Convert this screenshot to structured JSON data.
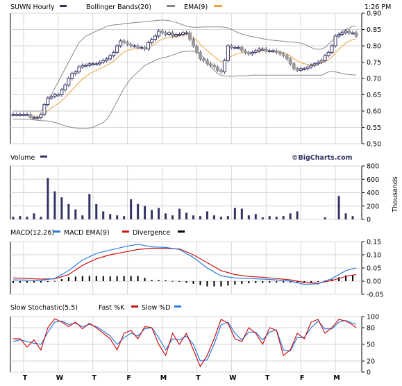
{
  "colors": {
    "sma": "#e8a33c",
    "candle": "#333366",
    "band": "#888888",
    "macd": "#2a7de1",
    "signal": "#cc1111",
    "hist": "#000000",
    "vol": "#333366"
  },
  "time": "1:26 PM",
  "x_ticks": [
    "T",
    "W",
    "T",
    "F",
    "M",
    "T",
    "W",
    "T",
    "F",
    "M"
  ],
  "watermark": "©BigCharts.com",
  "panels": {
    "price": {
      "title": "SUWN Hourly",
      "legend": [
        {
          "label": "Bollinger Bands(20)",
          "color": "#888888"
        },
        {
          "label": "EMA(9)",
          "color": "#e8a33c"
        }
      ],
      "y_ticks": [
        "0.90",
        "0.85",
        "0.80",
        "0.75",
        "0.70",
        "0.65",
        "0.60",
        "0.55",
        "0.50"
      ]
    },
    "volume": {
      "title": "Volume",
      "y_ticks": [
        "800",
        "600",
        "400",
        "200",
        "0"
      ],
      "y_unit": "Thousands"
    },
    "macd": {
      "title": "MACD(12,26)",
      "legend": [
        {
          "label": "MACD EMA(9)",
          "color": "#2a7de1"
        },
        {
          "label": "Divergence",
          "color": "#cc1111"
        }
      ],
      "y_ticks": [
        "0.15",
        "0.10",
        "0.05",
        "0.00",
        "-0.05"
      ]
    },
    "stoch": {
      "title": "Slow Stochastic(5,5)",
      "legend": [
        {
          "label": "Fast %K",
          "color": "#cc1111"
        },
        {
          "label": "Slow %D",
          "color": "#2a7de1"
        }
      ],
      "y_ticks": [
        "100",
        "80",
        "50",
        "20",
        "0"
      ]
    }
  },
  "chart_data": [
    {
      "type": "line",
      "panel": "price",
      "ylim": [
        0.5,
        0.9
      ],
      "x": [
        0,
        1,
        2,
        3,
        4,
        5,
        6,
        7,
        8,
        9,
        10,
        11,
        12,
        13,
        14,
        15,
        16,
        17,
        18,
        19,
        20,
        21,
        22,
        23,
        24,
        25,
        26,
        27,
        28,
        29,
        30,
        31,
        32,
        33,
        34,
        35,
        36,
        37,
        38,
        39,
        40,
        41,
        42,
        43,
        44,
        45,
        46,
        47,
        48,
        49,
        50,
        51,
        52,
        53,
        54,
        55,
        56,
        57,
        58,
        59,
        60,
        61,
        62,
        63,
        64,
        65,
        66,
        67,
        68,
        69,
        70,
        71,
        72,
        73,
        74,
        75,
        76,
        77,
        78,
        79,
        80,
        81,
        82,
        83,
        84,
        85,
        86,
        87,
        88,
        89,
        90,
        91,
        92,
        93,
        94,
        95,
        96,
        97,
        98,
        99
      ],
      "close": [
        0.59,
        0.59,
        0.59,
        0.59,
        0.59,
        0.58,
        0.58,
        0.58,
        0.59,
        0.62,
        0.64,
        0.645,
        0.65,
        0.65,
        0.665,
        0.68,
        0.7,
        0.715,
        0.72,
        0.735,
        0.74,
        0.74,
        0.745,
        0.745,
        0.745,
        0.75,
        0.755,
        0.76,
        0.77,
        0.78,
        0.8,
        0.815,
        0.81,
        0.805,
        0.8,
        0.8,
        0.795,
        0.795,
        0.79,
        0.81,
        0.82,
        0.83,
        0.845,
        0.84,
        0.835,
        0.84,
        0.83,
        0.835,
        0.835,
        0.84,
        0.84,
        0.82,
        0.8,
        0.78,
        0.76,
        0.755,
        0.745,
        0.74,
        0.735,
        0.725,
        0.72,
        0.755,
        0.8,
        0.795,
        0.795,
        0.795,
        0.785,
        0.78,
        0.775,
        0.78,
        0.785,
        0.79,
        0.79,
        0.785,
        0.785,
        0.785,
        0.78,
        0.775,
        0.77,
        0.76,
        0.745,
        0.73,
        0.725,
        0.73,
        0.73,
        0.735,
        0.74,
        0.745,
        0.75,
        0.755,
        0.77,
        0.78,
        0.8,
        0.83,
        0.835,
        0.84,
        0.845,
        0.84,
        0.84,
        0.83
      ],
      "ema9": [
        0.588,
        0.588,
        0.588,
        0.588,
        0.588,
        0.586,
        0.585,
        0.584,
        0.585,
        0.592,
        0.601,
        0.609,
        0.617,
        0.623,
        0.632,
        0.641,
        0.653,
        0.665,
        0.676,
        0.688,
        0.698,
        0.706,
        0.714,
        0.72,
        0.725,
        0.73,
        0.735,
        0.74,
        0.746,
        0.753,
        0.763,
        0.773,
        0.781,
        0.786,
        0.789,
        0.791,
        0.792,
        0.793,
        0.792,
        0.796,
        0.801,
        0.807,
        0.815,
        0.82,
        0.823,
        0.826,
        0.827,
        0.828,
        0.83,
        0.832,
        0.834,
        0.831,
        0.825,
        0.816,
        0.805,
        0.795,
        0.785,
        0.776,
        0.768,
        0.759,
        0.751,
        0.752,
        0.761,
        0.768,
        0.773,
        0.777,
        0.779,
        0.779,
        0.778,
        0.778,
        0.78,
        0.782,
        0.784,
        0.784,
        0.784,
        0.784,
        0.783,
        0.782,
        0.779,
        0.775,
        0.769,
        0.761,
        0.754,
        0.749,
        0.745,
        0.743,
        0.743,
        0.743,
        0.745,
        0.747,
        0.752,
        0.757,
        0.766,
        0.778,
        0.789,
        0.799,
        0.808,
        0.814,
        0.819,
        0.821
      ],
      "bb_upper": [
        0.6,
        0.6,
        0.6,
        0.6,
        0.6,
        0.6,
        0.6,
        0.6,
        0.6,
        0.61,
        0.63,
        0.65,
        0.67,
        0.69,
        0.71,
        0.73,
        0.75,
        0.77,
        0.79,
        0.81,
        0.82,
        0.83,
        0.835,
        0.84,
        0.845,
        0.85,
        0.855,
        0.86,
        0.862,
        0.864,
        0.865,
        0.866,
        0.868,
        0.869,
        0.87,
        0.871,
        0.872,
        0.873,
        0.874,
        0.875,
        0.876,
        0.877,
        0.878,
        0.879,
        0.878,
        0.877,
        0.875,
        0.872,
        0.868,
        0.864,
        0.86,
        0.858,
        0.857,
        0.857,
        0.857,
        0.858,
        0.858,
        0.858,
        0.858,
        0.858,
        0.858,
        0.857,
        0.855,
        0.85,
        0.845,
        0.84,
        0.836,
        0.833,
        0.83,
        0.828,
        0.826,
        0.824,
        0.822,
        0.82,
        0.818,
        0.817,
        0.816,
        0.815,
        0.814,
        0.813,
        0.812,
        0.811,
        0.81,
        0.808,
        0.805,
        0.8,
        0.795,
        0.79,
        0.79,
        0.79,
        0.795,
        0.805,
        0.815,
        0.825,
        0.835,
        0.845,
        0.85,
        0.855,
        0.86,
        0.86
      ],
      "bb_lower": [
        0.575,
        0.575,
        0.575,
        0.575,
        0.575,
        0.575,
        0.573,
        0.572,
        0.571,
        0.57,
        0.57,
        0.568,
        0.565,
        0.562,
        0.558,
        0.555,
        0.552,
        0.55,
        0.548,
        0.546,
        0.545,
        0.546,
        0.548,
        0.55,
        0.555,
        0.56,
        0.565,
        0.575,
        0.59,
        0.61,
        0.63,
        0.65,
        0.67,
        0.685,
        0.7,
        0.71,
        0.72,
        0.73,
        0.74,
        0.745,
        0.75,
        0.755,
        0.76,
        0.763,
        0.765,
        0.768,
        0.772,
        0.775,
        0.78,
        0.782,
        0.783,
        0.784,
        0.783,
        0.78,
        0.775,
        0.765,
        0.75,
        0.735,
        0.725,
        0.715,
        0.71,
        0.708,
        0.707,
        0.707,
        0.707,
        0.708,
        0.708,
        0.708,
        0.709,
        0.71,
        0.71,
        0.71,
        0.71,
        0.71,
        0.71,
        0.71,
        0.71,
        0.71,
        0.71,
        0.71,
        0.71,
        0.71,
        0.71,
        0.71,
        0.71,
        0.71,
        0.71,
        0.71,
        0.71,
        0.71,
        0.715,
        0.72,
        0.722,
        0.72,
        0.718,
        0.715,
        0.713,
        0.712,
        0.711,
        0.71
      ]
    },
    {
      "type": "bar",
      "panel": "volume",
      "ylim": [
        0,
        800
      ],
      "x": [
        0,
        2,
        4,
        6,
        8,
        10,
        12,
        14,
        16,
        18,
        20,
        22,
        24,
        26,
        28,
        30,
        32,
        34,
        36,
        38,
        40,
        42,
        44,
        46,
        48,
        50,
        52,
        54,
        56,
        58,
        60,
        62,
        64,
        66,
        68,
        70,
        72,
        74,
        76,
        78,
        80,
        82,
        84,
        86,
        88,
        90,
        92,
        94,
        96,
        98
      ],
      "values": [
        40,
        50,
        40,
        90,
        40,
        620,
        420,
        330,
        230,
        150,
        60,
        380,
        230,
        120,
        80,
        60,
        50,
        300,
        230,
        200,
        140,
        170,
        90,
        60,
        160,
        100,
        60,
        50,
        120,
        60,
        40,
        50,
        170,
        160,
        60,
        80,
        30,
        50,
        40,
        50,
        90,
        120,
        0,
        0,
        0,
        30,
        0,
        350,
        90,
        50
      ]
    },
    {
      "type": "line",
      "panel": "macd",
      "ylim": [
        -0.05,
        0.15
      ],
      "x": [
        0,
        4,
        8,
        12,
        16,
        20,
        24,
        28,
        32,
        36,
        40,
        44,
        48,
        52,
        56,
        60,
        64,
        68,
        72,
        76,
        80,
        84,
        88,
        92,
        96,
        99
      ],
      "macd": [
        0.005,
        0.004,
        0.003,
        0.01,
        0.04,
        0.08,
        0.105,
        0.118,
        0.13,
        0.14,
        0.13,
        0.128,
        0.12,
        0.09,
        0.05,
        0.02,
        0.012,
        0.01,
        0.008,
        0.005,
        0.0,
        -0.012,
        -0.01,
        0.01,
        0.04,
        0.05
      ],
      "signal": [
        0.012,
        0.01,
        0.008,
        0.009,
        0.025,
        0.06,
        0.085,
        0.1,
        0.11,
        0.12,
        0.125,
        0.124,
        0.122,
        0.1,
        0.07,
        0.04,
        0.025,
        0.018,
        0.015,
        0.01,
        0.005,
        -0.005,
        -0.008,
        0.003,
        0.018,
        0.025
      ],
      "divergence": [
        -0.007,
        -0.006,
        -0.005,
        0.001,
        0.015,
        0.02,
        0.02,
        0.018,
        0.02,
        0.02,
        0.005,
        0.004,
        -0.002,
        -0.01,
        -0.02,
        -0.02,
        -0.013,
        -0.008,
        -0.007,
        -0.005,
        -0.005,
        -0.007,
        -0.002,
        0.007,
        0.022,
        0.025
      ]
    },
    {
      "type": "line",
      "panel": "stoch",
      "ylim": [
        0,
        100
      ],
      "x": [
        0,
        2,
        4,
        6,
        8,
        10,
        12,
        14,
        16,
        18,
        20,
        22,
        24,
        26,
        28,
        30,
        32,
        34,
        36,
        38,
        40,
        42,
        44,
        46,
        48,
        50,
        52,
        54,
        56,
        58,
        60,
        62,
        64,
        66,
        68,
        70,
        72,
        74,
        76,
        78,
        80,
        82,
        84,
        86,
        88,
        90,
        92,
        94,
        96,
        98,
        99
      ],
      "fast_k": [
        60,
        60,
        45,
        58,
        40,
        80,
        96,
        90,
        82,
        90,
        78,
        88,
        80,
        70,
        60,
        40,
        70,
        75,
        60,
        82,
        80,
        50,
        30,
        70,
        50,
        70,
        40,
        10,
        30,
        60,
        95,
        88,
        60,
        55,
        80,
        70,
        50,
        80,
        75,
        30,
        40,
        70,
        60,
        90,
        95,
        70,
        80,
        95,
        92,
        85,
        80
      ],
      "slow_d": [
        55,
        58,
        55,
        52,
        50,
        72,
        90,
        92,
        86,
        88,
        82,
        86,
        82,
        74,
        65,
        50,
        62,
        70,
        65,
        78,
        80,
        62,
        40,
        60,
        58,
        65,
        50,
        20,
        22,
        50,
        85,
        90,
        70,
        58,
        72,
        72,
        58,
        72,
        76,
        40,
        38,
        62,
        62,
        80,
        92,
        78,
        78,
        90,
        93,
        88,
        86
      ]
    }
  ]
}
